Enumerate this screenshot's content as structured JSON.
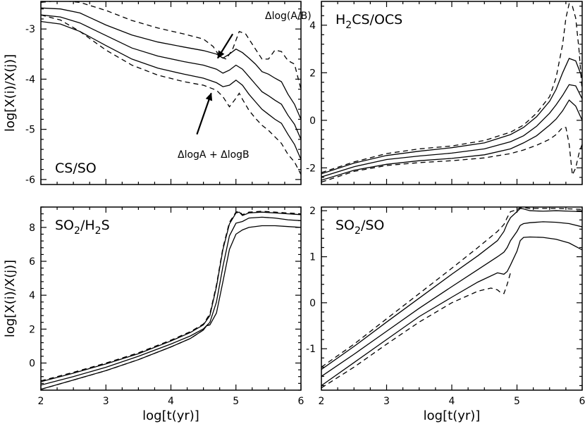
{
  "chart_data": [
    {
      "type": "line",
      "title_main": "CS/SO",
      "title_sub": "",
      "title_rest": "",
      "xlabel": "",
      "ylabel": "log[X(i)/X(j)]",
      "xlim": [
        2,
        6
      ],
      "ylim": [
        -6.1,
        -2.45
      ],
      "xticks": [],
      "yticks": [
        "-6",
        "-5",
        "-4",
        "-3"
      ],
      "annotations": [
        {
          "text": "Δlog(A/B)",
          "arrow_from": [
            4.95,
            -3.1
          ],
          "arrow_to": [
            4.72,
            -3.58
          ]
        },
        {
          "text": "ΔlogA + ΔlogB",
          "arrow_from": [
            4.4,
            -5.1
          ],
          "arrow_to": [
            4.62,
            -4.28
          ]
        }
      ],
      "series": [
        {
          "name": "upper dashed",
          "style": "dashed",
          "x": [
            2,
            2.3,
            2.6,
            3,
            3.4,
            3.8,
            4.2,
            4.5,
            4.65,
            4.75,
            4.85,
            4.95,
            5.05,
            5.15,
            5.25,
            5.4,
            5.5,
            5.6,
            5.7,
            5.8,
            5.9,
            6
          ],
          "y": [
            -2.47,
            -2.43,
            -2.47,
            -2.63,
            -2.83,
            -2.98,
            -3.1,
            -3.2,
            -3.35,
            -3.55,
            -3.6,
            -3.4,
            -3.05,
            -3.1,
            -3.3,
            -3.6,
            -3.6,
            -3.42,
            -3.45,
            -3.63,
            -3.7,
            -4.2
          ]
        },
        {
          "name": "upper solid",
          "style": "solid",
          "x": [
            2,
            2.3,
            2.6,
            3,
            3.4,
            3.8,
            4.2,
            4.5,
            4.7,
            4.8,
            4.9,
            5,
            5.1,
            5.2,
            5.3,
            5.4,
            5.5,
            5.6,
            5.7,
            5.8,
            5.9,
            6
          ],
          "y": [
            -2.58,
            -2.6,
            -2.68,
            -2.92,
            -3.12,
            -3.26,
            -3.36,
            -3.43,
            -3.5,
            -3.58,
            -3.5,
            -3.4,
            -3.47,
            -3.58,
            -3.7,
            -3.85,
            -3.9,
            -3.98,
            -4.05,
            -4.3,
            -4.5,
            -4.8
          ]
        },
        {
          "name": "middle solid",
          "style": "solid",
          "x": [
            2,
            2.3,
            2.6,
            3,
            3.4,
            3.8,
            4.2,
            4.5,
            4.7,
            4.8,
            4.9,
            5,
            5.1,
            5.2,
            5.3,
            5.4,
            5.5,
            5.6,
            5.7,
            5.8,
            5.9,
            6
          ],
          "y": [
            -2.72,
            -2.76,
            -2.88,
            -3.13,
            -3.38,
            -3.54,
            -3.65,
            -3.72,
            -3.8,
            -3.88,
            -3.82,
            -3.72,
            -3.8,
            -3.95,
            -4.1,
            -4.25,
            -4.33,
            -4.42,
            -4.5,
            -4.72,
            -4.9,
            -5.2
          ]
        },
        {
          "name": "lower solid",
          "style": "solid",
          "x": [
            2,
            2.3,
            2.6,
            3,
            3.4,
            3.8,
            4.2,
            4.5,
            4.7,
            4.8,
            4.9,
            5,
            5.1,
            5.2,
            5.3,
            5.4,
            5.5,
            5.6,
            5.7,
            5.8,
            5.9,
            6
          ],
          "y": [
            -2.85,
            -2.9,
            -3.05,
            -3.33,
            -3.6,
            -3.78,
            -3.9,
            -3.98,
            -4.07,
            -4.15,
            -4.12,
            -4.02,
            -4.12,
            -4.3,
            -4.45,
            -4.6,
            -4.7,
            -4.8,
            -4.88,
            -5.1,
            -5.3,
            -5.6
          ]
        },
        {
          "name": "lower dashed",
          "style": "dashed",
          "x": [
            2,
            2.3,
            2.6,
            3,
            3.4,
            3.8,
            4.2,
            4.5,
            4.7,
            4.8,
            4.9,
            5,
            5.05,
            5.1,
            5.2,
            5.3,
            5.4,
            5.5,
            5.6,
            5.7,
            5.8,
            5.9,
            6
          ],
          "y": [
            -2.72,
            -2.82,
            -3.05,
            -3.42,
            -3.72,
            -3.92,
            -4.05,
            -4.12,
            -4.22,
            -4.35,
            -4.55,
            -4.38,
            -4.28,
            -4.4,
            -4.62,
            -4.78,
            -4.92,
            -5.02,
            -5.15,
            -5.28,
            -5.5,
            -5.65,
            -5.9
          ]
        }
      ]
    },
    {
      "type": "line",
      "title_main": "H",
      "title_sub": "2",
      "title_rest": "CS/OCS",
      "xlabel": "",
      "ylabel": "",
      "xlim": [
        2,
        6
      ],
      "ylim": [
        -2.7,
        5.0
      ],
      "xticks": [],
      "yticks": [
        "-2",
        "0",
        "2",
        "4"
      ],
      "annotations": [],
      "series": [
        {
          "name": "upper dashed",
          "style": "dashed",
          "x": [
            2,
            2.5,
            3,
            3.5,
            4,
            4.5,
            4.9,
            5.1,
            5.3,
            5.5,
            5.6,
            5.7,
            5.75,
            5.8,
            5.85,
            5.9,
            5.95,
            6
          ],
          "y": [
            -2.2,
            -1.75,
            -1.4,
            -1.2,
            -1.08,
            -0.85,
            -0.5,
            -0.2,
            0.3,
            1.0,
            1.8,
            3.2,
            4.3,
            4.9,
            4.8,
            4.3,
            3.0,
            1.2
          ]
        },
        {
          "name": "upper solid",
          "style": "solid",
          "x": [
            2,
            2.5,
            3,
            3.5,
            4,
            4.5,
            4.9,
            5.1,
            5.3,
            5.5,
            5.6,
            5.7,
            5.8,
            5.9,
            6
          ],
          "y": [
            -2.25,
            -1.8,
            -1.48,
            -1.3,
            -1.15,
            -0.95,
            -0.6,
            -0.3,
            0.15,
            0.8,
            1.3,
            2.0,
            2.6,
            2.5,
            1.8
          ]
        },
        {
          "name": "middle solid",
          "style": "solid",
          "x": [
            2,
            2.5,
            3,
            3.5,
            4,
            4.5,
            4.9,
            5.1,
            5.3,
            5.5,
            5.6,
            5.7,
            5.8,
            5.9,
            6
          ],
          "y": [
            -2.38,
            -1.95,
            -1.65,
            -1.5,
            -1.38,
            -1.2,
            -0.9,
            -0.65,
            -0.25,
            0.3,
            0.65,
            1.05,
            1.5,
            1.45,
            0.9
          ]
        },
        {
          "name": "lower solid",
          "style": "solid",
          "x": [
            2,
            2.5,
            3,
            3.5,
            4,
            4.5,
            4.9,
            5.1,
            5.3,
            5.5,
            5.6,
            5.7,
            5.8,
            5.9,
            6
          ],
          "y": [
            -2.52,
            -2.1,
            -1.85,
            -1.7,
            -1.6,
            -1.45,
            -1.2,
            -0.95,
            -0.65,
            -0.2,
            0.05,
            0.4,
            0.85,
            0.6,
            0.0
          ]
        },
        {
          "name": "lower dashed",
          "style": "dashed",
          "x": [
            2,
            2.5,
            3,
            3.5,
            4,
            4.5,
            4.9,
            5.1,
            5.3,
            5.5,
            5.6,
            5.7,
            5.75,
            5.8,
            5.85,
            5.9,
            5.95,
            6
          ],
          "y": [
            -2.6,
            -2.15,
            -1.9,
            -1.78,
            -1.7,
            -1.58,
            -1.4,
            -1.25,
            -1.05,
            -0.8,
            -0.6,
            -0.3,
            -0.3,
            -1.0,
            -2.3,
            -2.0,
            -1.4,
            -1.0
          ]
        }
      ]
    },
    {
      "type": "line",
      "title_main": "SO",
      "title_sub": "2",
      "title_rest": "/H",
      "title_sub2": "2",
      "title_rest2": "S",
      "xlabel": "log[t(yr)]",
      "ylabel": "log[X(i)/X(j)]",
      "xlim": [
        2,
        6
      ],
      "ylim": [
        -1.6,
        9.2
      ],
      "xticks": [
        "2",
        "3",
        "4",
        "5",
        "6"
      ],
      "yticks": [
        "0",
        "2",
        "4",
        "6",
        "8"
      ],
      "annotations": [],
      "series": [
        {
          "name": "upper dashed",
          "style": "dashed",
          "x": [
            2,
            2.5,
            3,
            3.5,
            4,
            4.3,
            4.5,
            4.6,
            4.7,
            4.8,
            4.9,
            5.0,
            5.05,
            5.1,
            5.2,
            5.4,
            5.6,
            5.8,
            6
          ],
          "y": [
            -1.05,
            -0.55,
            0,
            0.6,
            1.35,
            1.85,
            2.3,
            2.9,
            4.6,
            6.8,
            8.3,
            8.9,
            8.95,
            8.75,
            8.9,
            8.95,
            8.9,
            8.85,
            8.8
          ]
        },
        {
          "name": "upper solid",
          "style": "solid",
          "x": [
            2,
            2.5,
            3,
            3.5,
            4,
            4.3,
            4.5,
            4.6,
            4.7,
            4.8,
            4.9,
            5.0,
            5.05,
            5.1,
            5.2,
            5.4,
            5.6,
            5.8,
            6
          ],
          "y": [
            -1.1,
            -0.6,
            -0.05,
            0.55,
            1.3,
            1.8,
            2.25,
            2.8,
            4.5,
            6.7,
            8.2,
            8.85,
            8.9,
            8.7,
            8.85,
            8.9,
            8.85,
            8.8,
            8.75
          ]
        },
        {
          "name": "middle solid",
          "style": "solid",
          "x": [
            2,
            2.5,
            3,
            3.5,
            4,
            4.3,
            4.5,
            4.6,
            4.7,
            4.8,
            4.9,
            5.0,
            5.1,
            5.2,
            5.4,
            5.6,
            5.8,
            6
          ],
          "y": [
            -1.3,
            -0.8,
            -0.25,
            0.4,
            1.12,
            1.6,
            2.02,
            2.4,
            3.6,
            5.7,
            7.5,
            8.25,
            8.35,
            8.55,
            8.6,
            8.55,
            8.45,
            8.4
          ]
        },
        {
          "name": "lower solid",
          "style": "solid",
          "x": [
            2,
            2.5,
            3,
            3.5,
            4,
            4.3,
            4.5,
            4.55,
            4.6,
            4.7,
            4.8,
            4.9,
            5.0,
            5.1,
            5.2,
            5.4,
            5.6,
            5.8,
            6
          ],
          "y": [
            -1.55,
            -1.0,
            -0.45,
            0.2,
            0.95,
            1.45,
            1.95,
            2.2,
            2.25,
            2.95,
            4.8,
            6.7,
            7.6,
            7.85,
            8.0,
            8.1,
            8.1,
            8.05,
            8.0
          ]
        },
        {
          "name": "lower dashed",
          "style": "dashed",
          "x": [
            2,
            2.5,
            3,
            3.5,
            4,
            4.3,
            4.5,
            4.55,
            4.6
          ],
          "y": [
            -1.55,
            -1.0,
            -0.45,
            0.2,
            0.95,
            1.45,
            1.95,
            2.2,
            2.25
          ]
        }
      ]
    },
    {
      "type": "line",
      "title_main": "SO",
      "title_sub": "2",
      "title_rest": "/SO",
      "xlabel": "log[t(yr)]",
      "ylabel": "",
      "xlim": [
        2,
        6
      ],
      "ylim": [
        -1.9,
        2.08
      ],
      "xticks": [
        "2",
        "3",
        "4",
        "5",
        "6"
      ],
      "yticks": [
        "-1",
        "0",
        "1",
        "2"
      ],
      "annotations": [],
      "series": [
        {
          "name": "upper dashed",
          "style": "dashed",
          "x": [
            2,
            2.5,
            3,
            3.5,
            4,
            4.4,
            4.7,
            4.8,
            4.85,
            4.9,
            5.0,
            5.05,
            5.1,
            5.2,
            5.4,
            5.6,
            5.8,
            6
          ],
          "y": [
            -1.4,
            -0.9,
            -0.35,
            0.2,
            0.75,
            1.2,
            1.55,
            1.7,
            1.85,
            1.98,
            2.02,
            2.07,
            2.07,
            2.05,
            2.05,
            2.05,
            2.04,
            2.03
          ]
        },
        {
          "name": "upper solid",
          "style": "solid",
          "x": [
            2,
            2.5,
            3,
            3.5,
            4,
            4.4,
            4.7,
            4.8,
            4.85,
            4.9,
            5.0,
            5.05,
            5.1,
            5.2,
            5.4,
            5.6,
            5.8,
            6
          ],
          "y": [
            -1.45,
            -0.95,
            -0.42,
            0.1,
            0.62,
            1.02,
            1.35,
            1.55,
            1.72,
            1.85,
            1.98,
            2.05,
            2.04,
            2.0,
            1.99,
            2.0,
            1.99,
            1.98
          ]
        },
        {
          "name": "middle solid",
          "style": "solid",
          "x": [
            2,
            2.5,
            3,
            3.5,
            4,
            4.4,
            4.7,
            4.8,
            4.85,
            4.9,
            5.0,
            5.05,
            5.1,
            5.2,
            5.4,
            5.6,
            5.8,
            6
          ],
          "y": [
            -1.6,
            -1.12,
            -0.62,
            -0.12,
            0.35,
            0.72,
            1.0,
            1.1,
            1.2,
            1.35,
            1.55,
            1.68,
            1.72,
            1.74,
            1.76,
            1.75,
            1.72,
            1.65
          ]
        },
        {
          "name": "lower solid",
          "style": "solid",
          "x": [
            2,
            2.5,
            3,
            3.5,
            4,
            4.4,
            4.7,
            4.8,
            4.85,
            4.9,
            5.0,
            5.05,
            5.1,
            5.2,
            5.4,
            5.6,
            5.8,
            6
          ],
          "y": [
            -1.8,
            -1.3,
            -0.8,
            -0.3,
            0.12,
            0.45,
            0.65,
            0.62,
            0.68,
            0.82,
            1.12,
            1.35,
            1.42,
            1.43,
            1.42,
            1.38,
            1.3,
            1.15
          ]
        },
        {
          "name": "lower dashed",
          "style": "dashed",
          "x": [
            2,
            2.5,
            3,
            3.5,
            4,
            4.4,
            4.6,
            4.7,
            4.75,
            4.8,
            4.85,
            4.9
          ],
          "y": [
            -1.85,
            -1.4,
            -0.9,
            -0.42,
            0.0,
            0.25,
            0.32,
            0.28,
            0.22,
            0.2,
            0.4,
            0.65
          ]
        }
      ]
    }
  ]
}
